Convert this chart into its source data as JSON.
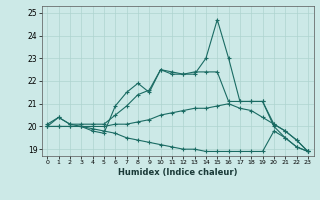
{
  "xlabel": "Humidex (Indice chaleur)",
  "bg_color": "#cce9e7",
  "grid_color": "#aed4d0",
  "line_color": "#1a6b63",
  "xlim": [
    -0.5,
    23.5
  ],
  "ylim": [
    18.7,
    25.3
  ],
  "yticks": [
    19,
    20,
    21,
    22,
    23,
    24,
    25
  ],
  "xticks": [
    0,
    1,
    2,
    3,
    4,
    5,
    6,
    7,
    8,
    9,
    10,
    11,
    12,
    13,
    14,
    15,
    16,
    17,
    18,
    19,
    20,
    21,
    22,
    23
  ],
  "series": [
    {
      "x": [
        0,
        1,
        2,
        3,
        4,
        5,
        6,
        7,
        8,
        9,
        10,
        11,
        12,
        13,
        14,
        15,
        16,
        17,
        18,
        19,
        20,
        21,
        22,
        23
      ],
      "y": [
        20.0,
        20.4,
        20.1,
        20.0,
        19.8,
        19.7,
        20.9,
        21.5,
        21.9,
        21.5,
        22.5,
        22.3,
        22.3,
        22.3,
        23.0,
        24.7,
        23.0,
        21.1,
        21.1,
        21.1,
        20.0,
        19.5,
        19.1,
        18.9
      ]
    },
    {
      "x": [
        0,
        1,
        2,
        3,
        4,
        5,
        6,
        7,
        8,
        9,
        10,
        11,
        12,
        13,
        14,
        15,
        16,
        17,
        18,
        19,
        20,
        21,
        22,
        23
      ],
      "y": [
        20.1,
        20.4,
        20.1,
        20.1,
        20.1,
        20.1,
        20.5,
        20.9,
        21.4,
        21.6,
        22.5,
        22.4,
        22.3,
        22.4,
        22.4,
        22.4,
        21.1,
        21.1,
        21.1,
        21.1,
        20.1,
        19.8,
        19.4,
        18.9
      ]
    },
    {
      "x": [
        0,
        1,
        2,
        3,
        4,
        5,
        6,
        7,
        8,
        9,
        10,
        11,
        12,
        13,
        14,
        15,
        16,
        17,
        18,
        19,
        20,
        21,
        22,
        23
      ],
      "y": [
        20.0,
        20.0,
        20.0,
        20.0,
        20.0,
        20.0,
        20.1,
        20.1,
        20.2,
        20.3,
        20.5,
        20.6,
        20.7,
        20.8,
        20.8,
        20.9,
        21.0,
        20.8,
        20.7,
        20.4,
        20.1,
        19.8,
        19.4,
        18.9
      ]
    },
    {
      "x": [
        0,
        1,
        2,
        3,
        4,
        5,
        6,
        7,
        8,
        9,
        10,
        11,
        12,
        13,
        14,
        15,
        16,
        17,
        18,
        19,
        20,
        21,
        22,
        23
      ],
      "y": [
        20.0,
        20.0,
        20.0,
        20.0,
        19.9,
        19.8,
        19.7,
        19.5,
        19.4,
        19.3,
        19.2,
        19.1,
        19.0,
        19.0,
        18.9,
        18.9,
        18.9,
        18.9,
        18.9,
        18.9,
        19.8,
        19.5,
        19.1,
        18.9
      ]
    }
  ]
}
